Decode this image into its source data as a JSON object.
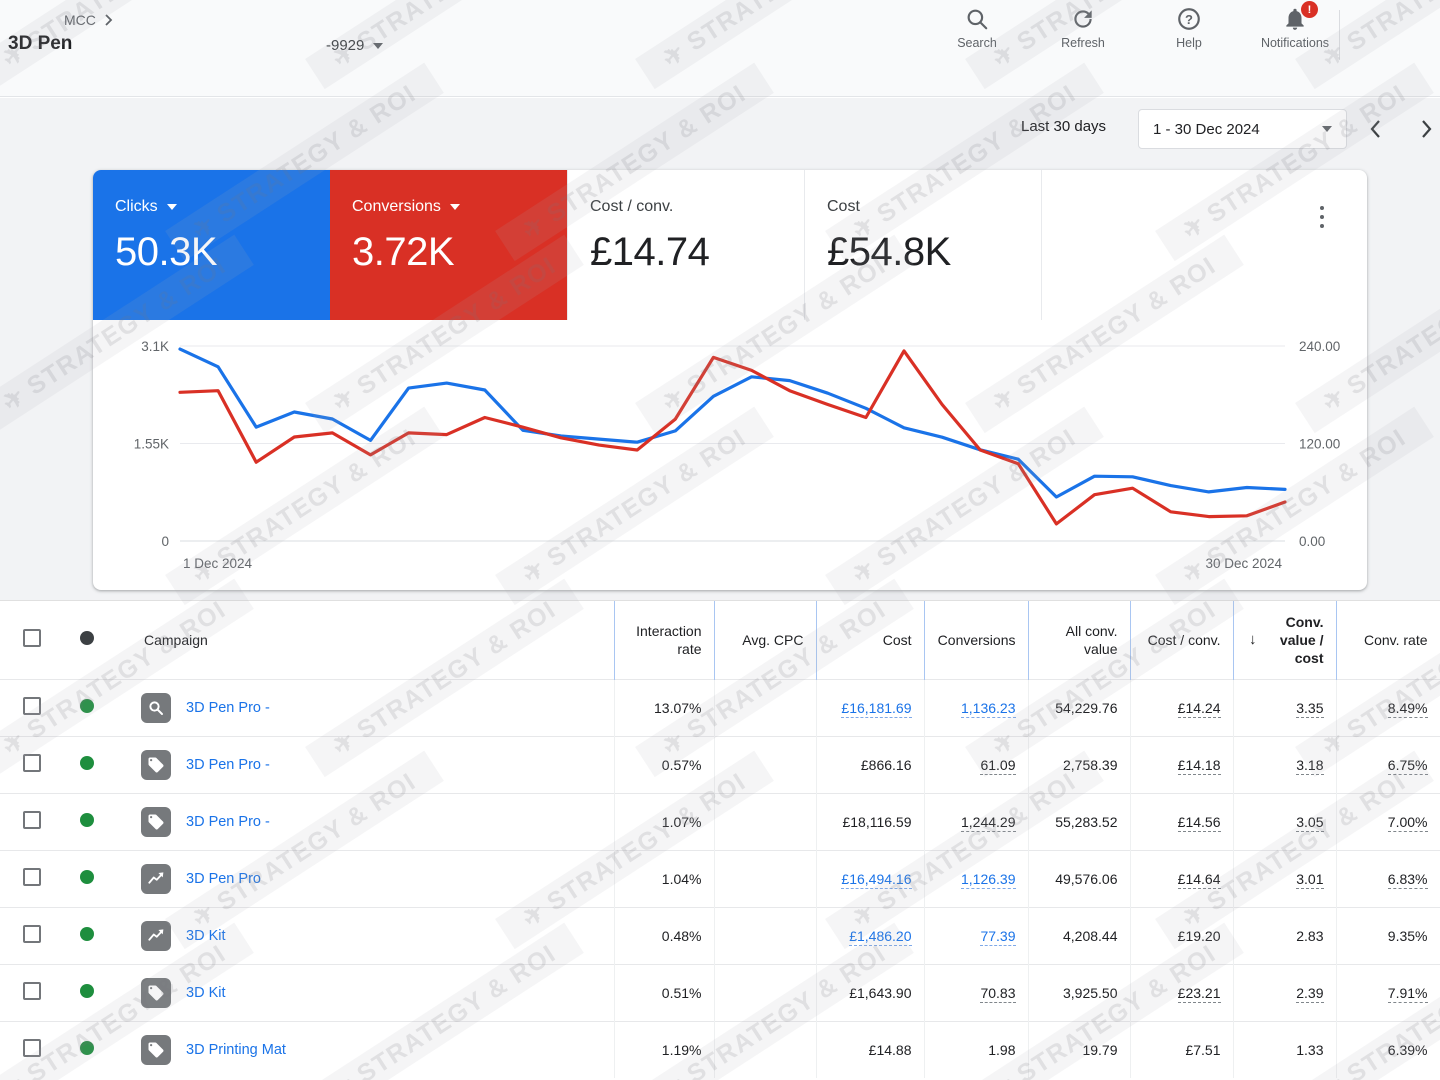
{
  "topbar": {
    "breadcrumb": {
      "root": "MCC",
      "account_name": "3D Pen",
      "account_id": "-9929"
    },
    "actions": [
      {
        "label": "Search",
        "icon": "search-icon"
      },
      {
        "label": "Refresh",
        "icon": "refresh-icon"
      },
      {
        "label": "Help",
        "icon": "help-icon"
      },
      {
        "label": "Notifications",
        "icon": "notifications-icon",
        "badge": "!"
      }
    ]
  },
  "date_controls": {
    "preset": "Last 30 days",
    "range": "1 - 30 Dec 2024"
  },
  "colors": {
    "accent_blue": "#1a73e8",
    "accent_red": "#d93025",
    "status_green": "#1e8e3e",
    "link": "#1a73e8"
  },
  "scorecards": [
    {
      "key": "clicks",
      "metric": "Clicks",
      "value": "50.3K",
      "bg": "#1a73e8",
      "caret": true
    },
    {
      "key": "conversions",
      "metric": "Conversions",
      "value": "3.72K",
      "bg": "#d93025",
      "caret": true
    },
    {
      "key": "cost-per-conv",
      "metric": "Cost / conv.",
      "value": "£14.74"
    },
    {
      "key": "cost",
      "metric": "Cost",
      "value": "£54.8K"
    }
  ],
  "chart_data": {
    "type": "line",
    "title": "Clicks vs Conversions daily trend",
    "x_label_start": "1 Dec 2024",
    "x_label_end": "30 Dec 2024",
    "days": [
      1,
      2,
      3,
      4,
      5,
      6,
      7,
      8,
      9,
      10,
      11,
      12,
      13,
      14,
      15,
      16,
      17,
      18,
      19,
      20,
      21,
      22,
      23,
      24,
      25,
      26,
      27,
      28,
      29,
      30
    ],
    "left_axis": {
      "ticks": [
        "0",
        "1.55K",
        "3.1K"
      ],
      "range": [
        0,
        3100
      ]
    },
    "right_axis": {
      "ticks": [
        "0.00",
        "120.00",
        "240.00"
      ],
      "range": [
        0,
        240
      ]
    },
    "grid": true,
    "legend": "none",
    "series": [
      {
        "name": "Clicks",
        "axis": "left",
        "color": "#1a73e8",
        "values": [
          3050,
          2770,
          1810,
          2050,
          1940,
          1600,
          2430,
          2510,
          2400,
          1760,
          1670,
          1620,
          1570,
          1750,
          2300,
          2610,
          2550,
          2350,
          2110,
          1800,
          1650,
          1450,
          1300,
          700,
          1030,
          1020,
          880,
          780,
          850,
          820
        ]
      },
      {
        "name": "Conversions",
        "axis": "right",
        "color": "#d93025",
        "values": [
          183,
          185,
          97,
          128,
          133,
          106,
          133,
          131,
          152,
          140,
          127,
          118,
          112,
          150,
          226,
          210,
          185,
          168,
          152,
          234,
          168,
          112,
          95,
          21,
          57,
          65,
          36,
          30,
          31,
          48
        ]
      }
    ]
  },
  "table": {
    "columns": [
      {
        "key": "select",
        "label": "",
        "type": "checkbox"
      },
      {
        "key": "status",
        "label": "",
        "type": "status"
      },
      {
        "key": "campaign",
        "label": "Campaign",
        "align": "left"
      },
      {
        "key": "interaction_rate",
        "label": "Interaction rate",
        "align": "right"
      },
      {
        "key": "avg_cpc",
        "label": "Avg. CPC",
        "align": "right",
        "nowrap": true
      },
      {
        "key": "cost",
        "label": "Cost",
        "align": "right",
        "nowrap": true
      },
      {
        "key": "conversions",
        "label": "Conversions",
        "align": "right",
        "nowrap": true
      },
      {
        "key": "all_conv_value",
        "label": "All conv. value",
        "align": "right"
      },
      {
        "key": "cost_per_conv",
        "label": "Cost / conv.",
        "align": "right"
      },
      {
        "key": "conv_value_per_cost",
        "label": "Conv. value / cost",
        "align": "right",
        "sorted": "desc"
      },
      {
        "key": "conv_rate",
        "label": "Conv. rate",
        "align": "right",
        "nowrap": true
      }
    ],
    "rows": [
      {
        "status": "enabled",
        "icon": "search-campaign-icon",
        "name": "3D Pen Pro -",
        "cells": {
          "interaction_rate": {
            "v": "13.07%"
          },
          "avg_cpc": {
            "v": ""
          },
          "cost": {
            "v": "£16,181.69",
            "s": "link"
          },
          "conversions": {
            "v": "1,136.23",
            "s": "link"
          },
          "all_conv_value": {
            "v": "54,229.76"
          },
          "cost_per_conv": {
            "v": "£14.24",
            "s": "dashed"
          },
          "conv_value_per_cost": {
            "v": "3.35",
            "s": "dashed"
          },
          "conv_rate": {
            "v": "8.49%",
            "s": "dashed"
          }
        }
      },
      {
        "status": "enabled",
        "icon": "shopping-campaign-icon",
        "name": "3D Pen Pro -",
        "cells": {
          "interaction_rate": {
            "v": "0.57%"
          },
          "avg_cpc": {
            "v": ""
          },
          "cost": {
            "v": "£866.16"
          },
          "conversions": {
            "v": "61.09",
            "s": "dashed"
          },
          "all_conv_value": {
            "v": "2,758.39"
          },
          "cost_per_conv": {
            "v": "£14.18",
            "s": "dashed"
          },
          "conv_value_per_cost": {
            "v": "3.18",
            "s": "dashed"
          },
          "conv_rate": {
            "v": "6.75%",
            "s": "dashed"
          }
        }
      },
      {
        "status": "enabled",
        "icon": "shopping-campaign-icon",
        "name": "3D Pen Pro -",
        "cells": {
          "interaction_rate": {
            "v": "1.07%"
          },
          "avg_cpc": {
            "v": ""
          },
          "cost": {
            "v": "£18,116.59"
          },
          "conversions": {
            "v": "1,244.29",
            "s": "dashed"
          },
          "all_conv_value": {
            "v": "55,283.52"
          },
          "cost_per_conv": {
            "v": "£14.56",
            "s": "dashed"
          },
          "conv_value_per_cost": {
            "v": "3.05",
            "s": "dashed"
          },
          "conv_rate": {
            "v": "7.00%",
            "s": "dashed"
          }
        }
      },
      {
        "status": "enabled",
        "icon": "performance-max-icon",
        "name": "3D Pen Pro",
        "cells": {
          "interaction_rate": {
            "v": "1.04%"
          },
          "avg_cpc": {
            "v": ""
          },
          "cost": {
            "v": "£16,494.16",
            "s": "link"
          },
          "conversions": {
            "v": "1,126.39",
            "s": "link"
          },
          "all_conv_value": {
            "v": "49,576.06"
          },
          "cost_per_conv": {
            "v": "£14.64",
            "s": "dashed"
          },
          "conv_value_per_cost": {
            "v": "3.01",
            "s": "dashed"
          },
          "conv_rate": {
            "v": "6.83%",
            "s": "dashed"
          }
        }
      },
      {
        "status": "enabled",
        "icon": "performance-max-icon",
        "name": "3D Kit",
        "cells": {
          "interaction_rate": {
            "v": "0.48%"
          },
          "avg_cpc": {
            "v": ""
          },
          "cost": {
            "v": "£1,486.20",
            "s": "link"
          },
          "conversions": {
            "v": "77.39",
            "s": "link"
          },
          "all_conv_value": {
            "v": "4,208.44"
          },
          "cost_per_conv": {
            "v": "£19.20"
          },
          "conv_value_per_cost": {
            "v": "2.83"
          },
          "conv_rate": {
            "v": "9.35%"
          }
        }
      },
      {
        "status": "enabled",
        "icon": "shopping-campaign-icon",
        "name": "3D Kit",
        "cells": {
          "interaction_rate": {
            "v": "0.51%"
          },
          "avg_cpc": {
            "v": ""
          },
          "cost": {
            "v": "£1,643.90"
          },
          "conversions": {
            "v": "70.83",
            "s": "dashed"
          },
          "all_conv_value": {
            "v": "3,925.50"
          },
          "cost_per_conv": {
            "v": "£23.21",
            "s": "dashed"
          },
          "conv_value_per_cost": {
            "v": "2.39",
            "s": "dashed"
          },
          "conv_rate": {
            "v": "7.91%",
            "s": "dashed"
          }
        }
      },
      {
        "status": "enabled",
        "icon": "shopping-campaign-icon",
        "name": "3D Printing Mat",
        "cells": {
          "interaction_rate": {
            "v": "1.19%"
          },
          "avg_cpc": {
            "v": ""
          },
          "cost": {
            "v": "£14.88"
          },
          "conversions": {
            "v": "1.98"
          },
          "all_conv_value": {
            "v": "19.79"
          },
          "cost_per_conv": {
            "v": "£7.51"
          },
          "conv_value_per_cost": {
            "v": "1.33"
          },
          "conv_rate": {
            "v": "6.39%"
          }
        }
      }
    ]
  },
  "watermark": {
    "text": "STRATEGY & ROI",
    "plane_icon": "✈"
  }
}
